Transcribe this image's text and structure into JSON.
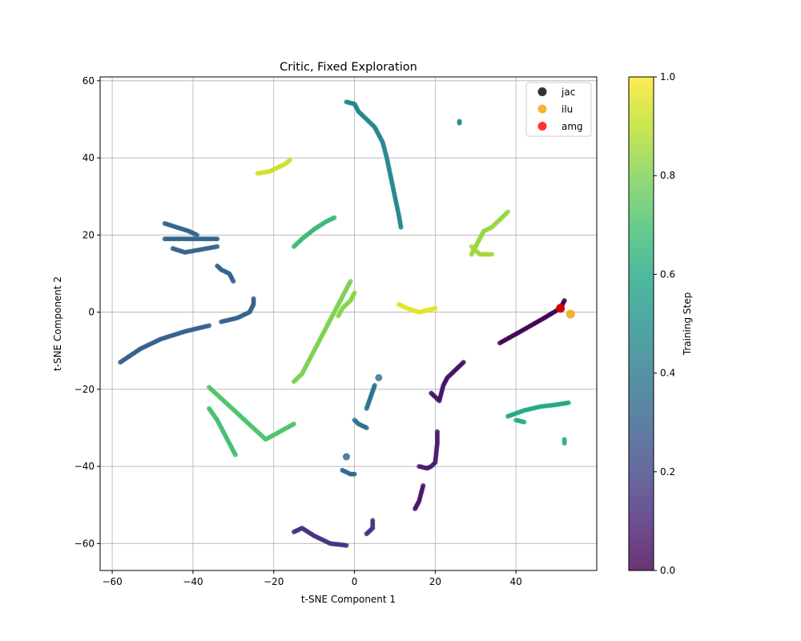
{
  "chart_data": {
    "type": "scatter",
    "title": "Critic, Fixed Exploration",
    "xlabel": "t-SNE Component 1",
    "ylabel": "t-SNE Component 2",
    "xlim": [
      -63,
      60
    ],
    "ylim": [
      -67,
      61
    ],
    "xticks": [
      -60,
      -40,
      -20,
      0,
      20,
      40
    ],
    "yticks": [
      -60,
      -40,
      -20,
      0,
      20,
      40,
      60
    ],
    "grid": true,
    "legend_position": "top-right",
    "colorbar": {
      "label": "Training Step",
      "range": [
        0,
        1
      ],
      "ticks": [
        "0.0",
        "0.2",
        "0.4",
        "0.6",
        "0.8",
        "1.0"
      ],
      "colormap": "viridis"
    },
    "legend": [
      {
        "name": "jac",
        "color": "#000000"
      },
      {
        "name": "ilu",
        "color": "#f5a000"
      },
      {
        "name": "amg",
        "color": "#ff0000"
      }
    ],
    "clusters": [
      {
        "t": 0.0,
        "path": [
          [
            36,
            -8
          ],
          [
            42,
            -4.5
          ],
          [
            47,
            -1.5
          ],
          [
            51,
            1
          ],
          [
            52,
            3
          ]
        ]
      },
      {
        "t": 0.05,
        "path": [
          [
            19,
            -21
          ],
          [
            20,
            -22
          ],
          [
            21,
            -23
          ],
          [
            22,
            -19
          ],
          [
            23,
            -17
          ],
          [
            25,
            -15
          ],
          [
            27,
            -13
          ]
        ]
      },
      {
        "t": 0.06,
        "path": [
          [
            15,
            -51
          ],
          [
            16,
            -49
          ],
          [
            16.5,
            -47
          ],
          [
            17,
            -45
          ]
        ]
      },
      {
        "t": 0.08,
        "path": [
          [
            16,
            -40
          ],
          [
            18,
            -40.5
          ],
          [
            19,
            -40
          ],
          [
            20,
            -39
          ],
          [
            20.5,
            -34
          ],
          [
            20.5,
            -31
          ]
        ]
      },
      {
        "t": 0.14,
        "path": [
          [
            -15,
            -57
          ],
          [
            -13,
            -56
          ],
          [
            -10,
            -58
          ],
          [
            -6,
            -60
          ],
          [
            -2,
            -60.5
          ]
        ]
      },
      {
        "t": 0.14,
        "path": [
          [
            3,
            -57.5
          ],
          [
            4.5,
            -56
          ],
          [
            4.5,
            -54
          ]
        ]
      },
      {
        "t": 0.3,
        "path": [
          [
            -58,
            -13
          ],
          [
            -53,
            -9.5
          ],
          [
            -48,
            -7
          ],
          [
            -42,
            -5
          ],
          [
            -36,
            -3.5
          ]
        ]
      },
      {
        "t": 0.3,
        "path": [
          [
            -33,
            -2.5
          ],
          [
            -29,
            -1.5
          ],
          [
            -26,
            0
          ],
          [
            -25,
            2
          ],
          [
            -25,
            3.5
          ]
        ]
      },
      {
        "t": 0.32,
        "path": [
          [
            -47,
            23
          ],
          [
            -44,
            22
          ],
          [
            -41,
            21
          ],
          [
            -39,
            20
          ]
        ]
      },
      {
        "t": 0.32,
        "path": [
          [
            -47,
            19
          ],
          [
            -43,
            19
          ],
          [
            -38,
            19
          ],
          [
            -34,
            19
          ]
        ]
      },
      {
        "t": 0.32,
        "path": [
          [
            -45,
            16.5
          ],
          [
            -42,
            15.5
          ],
          [
            -34,
            17
          ]
        ]
      },
      {
        "t": 0.32,
        "path": [
          [
            -34,
            12
          ],
          [
            -33,
            11
          ],
          [
            -31,
            10
          ],
          [
            -30,
            8
          ]
        ]
      },
      {
        "t": 0.33,
        "path": [
          [
            -3,
            -41
          ],
          [
            -1,
            -42
          ],
          [
            0,
            -42
          ]
        ]
      },
      {
        "t": 0.34,
        "path": [
          [
            -2,
            -37.5
          ]
        ]
      },
      {
        "t": 0.38,
        "path": [
          [
            0,
            -28
          ],
          [
            1,
            -29
          ],
          [
            2,
            -29.5
          ],
          [
            3,
            -30
          ]
        ]
      },
      {
        "t": 0.38,
        "path": [
          [
            3,
            -25
          ],
          [
            4,
            -22
          ],
          [
            5,
            -19
          ]
        ]
      },
      {
        "t": 0.4,
        "path": [
          [
            6,
            -17
          ]
        ]
      },
      {
        "t": 0.46,
        "path": [
          [
            -2,
            54.5
          ],
          [
            0,
            54
          ],
          [
            1,
            52
          ],
          [
            3,
            50
          ],
          [
            5,
            48
          ],
          [
            6,
            46
          ],
          [
            7,
            44
          ],
          [
            8,
            40
          ],
          [
            9,
            35
          ],
          [
            10,
            30
          ],
          [
            11,
            25
          ],
          [
            11.5,
            22
          ]
        ]
      },
      {
        "t": 0.5,
        "path": [
          [
            26,
            49.5
          ],
          [
            26,
            49
          ]
        ]
      },
      {
        "t": 0.6,
        "path": [
          [
            38,
            -27
          ],
          [
            42,
            -25.5
          ],
          [
            46,
            -24.5
          ],
          [
            50,
            -24
          ],
          [
            53,
            -23.5
          ]
        ]
      },
      {
        "t": 0.62,
        "path": [
          [
            40,
            -28
          ],
          [
            42,
            -28.5
          ]
        ]
      },
      {
        "t": 0.62,
        "path": [
          [
            52,
            -33
          ],
          [
            52,
            -34
          ]
        ]
      },
      {
        "t": 0.68,
        "path": [
          [
            -15,
            17
          ],
          [
            -13,
            19
          ],
          [
            -10,
            21.5
          ],
          [
            -7,
            23.5
          ],
          [
            -5,
            24.5
          ]
        ]
      },
      {
        "t": 0.7,
        "path": [
          [
            -36,
            -25
          ],
          [
            -34,
            -28
          ],
          [
            -32,
            -32
          ],
          [
            -30.5,
            -35
          ],
          [
            -29.5,
            -37
          ]
        ]
      },
      {
        "t": 0.72,
        "path": [
          [
            -15,
            -29
          ],
          [
            -22,
            -33
          ],
          [
            -36,
            -19.5
          ]
        ]
      },
      {
        "t": 0.8,
        "path": [
          [
            -15,
            -18
          ],
          [
            -13,
            -16
          ],
          [
            -11,
            -12
          ],
          [
            -9,
            -8
          ],
          [
            -7,
            -4
          ],
          [
            -5,
            0
          ],
          [
            -3,
            4
          ],
          [
            -1,
            8
          ]
        ]
      },
      {
        "t": 0.82,
        "path": [
          [
            -4,
            -1
          ],
          [
            -3,
            1
          ],
          [
            -1,
            3
          ],
          [
            0,
            5
          ]
        ]
      },
      {
        "t": 0.84,
        "path": [
          [
            29,
            15
          ],
          [
            30,
            17
          ],
          [
            31,
            19
          ],
          [
            32,
            21
          ],
          [
            34,
            22
          ],
          [
            36,
            24
          ],
          [
            38,
            26
          ]
        ]
      },
      {
        "t": 0.86,
        "path": [
          [
            29,
            17
          ],
          [
            30,
            16
          ],
          [
            31,
            15
          ],
          [
            34,
            15
          ]
        ]
      },
      {
        "t": 0.93,
        "path": [
          [
            -24,
            36
          ],
          [
            -21,
            36.5
          ],
          [
            -19,
            37.5
          ],
          [
            -17,
            38.5
          ],
          [
            -16,
            39.5
          ]
        ]
      },
      {
        "t": 0.96,
        "path": [
          [
            11,
            2
          ],
          [
            13,
            1
          ],
          [
            16,
            0
          ],
          [
            18,
            0.5
          ],
          [
            20,
            1
          ]
        ]
      }
    ],
    "special_points": [
      {
        "name": "jac",
        "x": 51,
        "y": 1
      },
      {
        "name": "ilu",
        "x": 53.5,
        "y": -0.5
      },
      {
        "name": "amg",
        "x": 51,
        "y": 1
      }
    ]
  }
}
